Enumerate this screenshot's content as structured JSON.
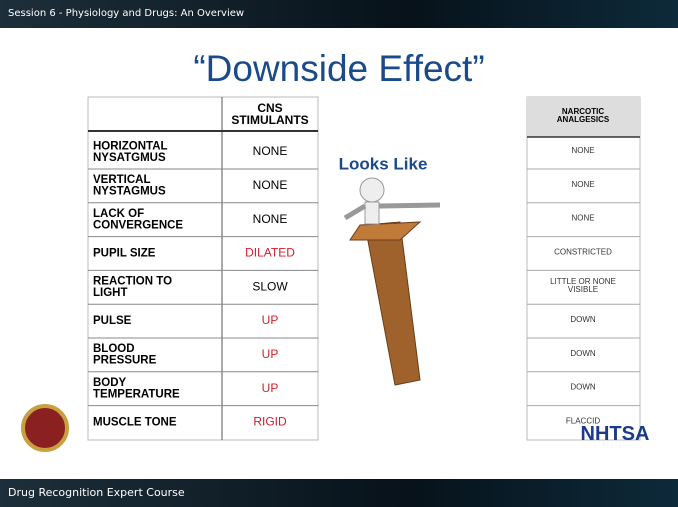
{
  "header": {
    "session": "Session 6 - Physiology and Drugs: An Overview"
  },
  "title": "“Downside Effect”",
  "table": {
    "cns_header": "CNS\nSTIMULANTS",
    "narcotic_header": "NARCOTIC\nANALGESICS",
    "rows": [
      {
        "label": "HORIZONTAL\nNYSATGMUS",
        "cns": "NONE",
        "cns_color": "#000000",
        "narcotic": "NONE"
      },
      {
        "label": "VERTICAL\nNYSTAGMUS",
        "cns": "NONE",
        "cns_color": "#000000",
        "narcotic": "NONE"
      },
      {
        "label": "LACK OF\nCONVERGENCE",
        "cns": "NONE",
        "cns_color": "#000000",
        "narcotic": "NONE"
      },
      {
        "label": "PUPIL SIZE",
        "cns": "DILATED",
        "cns_color": "#d0202a",
        "narcotic": "CONSTRICTED"
      },
      {
        "label": "REACTION TO\nLIGHT",
        "cns": "SLOW",
        "cns_color": "#000000",
        "narcotic": "LITTLE OR NONE\nVISIBLE"
      },
      {
        "label": "PULSE",
        "cns": "UP",
        "cns_color": "#d0202a",
        "narcotic": "DOWN"
      },
      {
        "label": "BLOOD\nPRESSURE",
        "cns": "UP",
        "cns_color": "#d0202a",
        "narcotic": "DOWN"
      },
      {
        "label": "BODY\nTEMPERATURE",
        "cns": "UP",
        "cns_color": "#d0202a",
        "narcotic": "DOWN"
      },
      {
        "label": "MUSCLE TONE",
        "cns": "RIGID",
        "cns_color": "#d0202a",
        "narcotic": "FLACCID"
      }
    ]
  },
  "looks_like": "Looks Like",
  "logo": "NHTSA",
  "footer": "Drug Recognition Expert Course"
}
